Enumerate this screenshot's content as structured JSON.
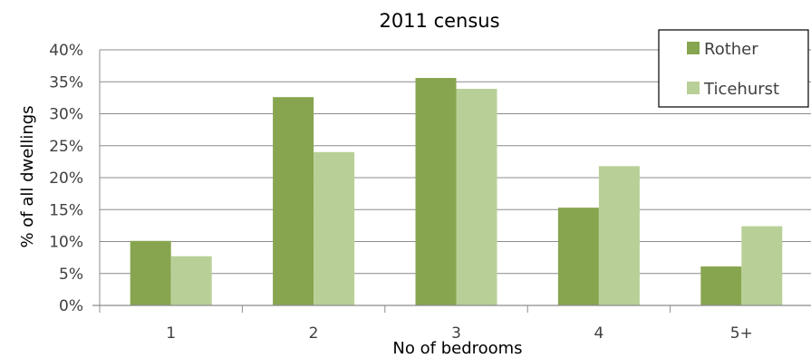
{
  "chart_data": {
    "type": "bar",
    "title": "2011 census",
    "xlabel": "No of bedrooms",
    "ylabel": "% of all dwellings",
    "categories": [
      "1",
      "2",
      "3",
      "4",
      "5+"
    ],
    "series": [
      {
        "name": "Rother",
        "color": "#87a54f",
        "values": [
          10.1,
          32.6,
          35.6,
          15.3,
          6.1
        ]
      },
      {
        "name": "Ticehurst",
        "color": "#b8d097",
        "values": [
          7.7,
          24.0,
          33.9,
          21.8,
          12.4
        ]
      }
    ],
    "ylim": [
      0,
      40
    ],
    "yticks": [
      "0%",
      "5%",
      "10%",
      "15%",
      "20%",
      "25%",
      "30%",
      "35%",
      "40%"
    ],
    "grid": true,
    "legend_position": "top-right"
  }
}
